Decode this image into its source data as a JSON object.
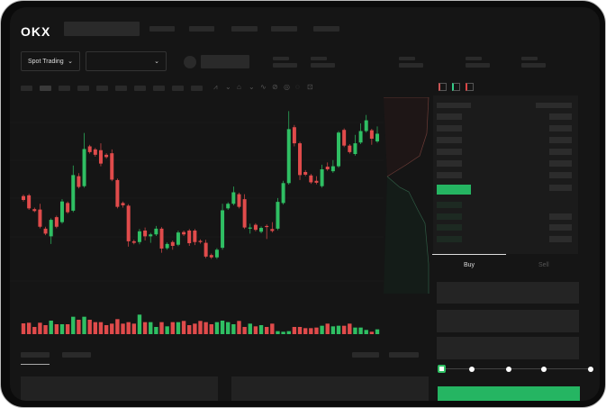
{
  "header": {
    "logo": "OKX"
  },
  "toolbar": {
    "market_selector": "Spot Trading",
    "pair_selector": "",
    "chevron_icon": "chevron-down-icon"
  },
  "orderbook": {
    "view_icons": [
      "orderbook-both-icon",
      "orderbook-buy-icon",
      "orderbook-sell-icon"
    ]
  },
  "trade_form": {
    "tabs": [
      {
        "label": "Buy",
        "active": true
      },
      {
        "label": "Sell",
        "active": false
      }
    ],
    "leverage_slider_value": 0,
    "slider_steps": 5
  },
  "colors": {
    "up": "#2fbf63",
    "down": "#e04b4b",
    "background": "#151515",
    "accent": "#25b562"
  },
  "chart_data": {
    "type": "candlestick",
    "candles": [
      [
        55.0,
        54.0,
        55.4,
        53.6
      ],
      [
        55.2,
        51.8,
        55.6,
        51.4
      ],
      [
        51.6,
        51.1,
        52.0,
        50.8
      ],
      [
        51.5,
        47.0,
        53.0,
        46.6
      ],
      [
        46.5,
        45.2,
        47.0,
        44.8
      ],
      [
        44.5,
        48.8,
        49.2,
        42.5
      ],
      [
        49.5,
        47.0,
        49.9,
        46.6
      ],
      [
        48.2,
        53.6,
        54.2,
        47.8
      ],
      [
        53.2,
        50.8,
        53.6,
        50.4
      ],
      [
        51.2,
        60.5,
        63.0,
        50.8
      ],
      [
        60.2,
        57.4,
        61.0,
        57.0
      ],
      [
        57.6,
        67.3,
        71.5,
        57.2
      ],
      [
        68.0,
        66.5,
        68.4,
        66.1
      ],
      [
        67.2,
        65.8,
        67.6,
        65.3
      ],
      [
        67.0,
        63.5,
        68.8,
        62.8
      ],
      [
        65.8,
        65.2,
        66.2,
        64.8
      ],
      [
        66.2,
        59.3,
        67.2,
        58.9
      ],
      [
        59.2,
        52.2,
        59.6,
        51.8
      ],
      [
        53.2,
        52.6,
        53.6,
        52.0
      ],
      [
        52.5,
        43.2,
        52.9,
        41.8
      ],
      [
        43.2,
        42.8,
        43.6,
        42.4
      ],
      [
        43.0,
        45.8,
        46.4,
        42.4
      ],
      [
        46.0,
        44.5,
        46.8,
        43.4
      ],
      [
        44.5,
        45.0,
        45.4,
        42.8
      ],
      [
        45.0,
        46.5,
        47.2,
        44.6
      ],
      [
        46.5,
        41.3,
        46.9,
        40.2
      ],
      [
        41.4,
        42.5,
        42.9,
        41.0
      ],
      [
        43.0,
        42.0,
        43.4,
        41.0
      ],
      [
        42.3,
        45.5,
        46.0,
        41.9
      ],
      [
        45.6,
        45.0,
        46.0,
        44.6
      ],
      [
        46.0,
        42.7,
        46.4,
        42.0
      ],
      [
        46.0,
        43.0,
        46.4,
        42.2
      ],
      [
        43.3,
        43.0,
        43.7,
        42.6
      ],
      [
        42.8,
        39.2,
        43.6,
        38.8
      ],
      [
        39.6,
        39.0,
        40.0,
        38.6
      ],
      [
        39.0,
        41.0,
        41.4,
        38.6
      ],
      [
        41.5,
        51.3,
        53.0,
        41.0
      ],
      [
        51.8,
        53.0,
        53.4,
        51.4
      ],
      [
        53.0,
        56.0,
        57.5,
        52.6
      ],
      [
        55.5,
        52.2,
        55.9,
        51.8
      ],
      [
        54.2,
        46.8,
        55.5,
        46.4
      ],
      [
        46.5,
        46.8,
        47.8,
        45.2
      ],
      [
        47.5,
        46.2,
        47.9,
        45.8
      ],
      [
        45.7,
        46.7,
        47.1,
        45.3
      ],
      [
        47.2,
        47.0,
        47.6,
        43.8
      ],
      [
        46.4,
        45.9,
        48.2,
        45.5
      ],
      [
        46.5,
        53.5,
        54.5,
        46.1
      ],
      [
        53.2,
        58.4,
        59.0,
        52.8
      ],
      [
        58.4,
        72.5,
        77.2,
        58.0
      ],
      [
        73.0,
        68.8,
        73.6,
        68.0
      ],
      [
        68.8,
        60.5,
        69.2,
        59.2
      ],
      [
        61.3,
        60.6,
        61.8,
        60.2
      ],
      [
        60.4,
        58.6,
        60.8,
        58.2
      ],
      [
        59.0,
        58.5,
        60.2,
        58.1
      ],
      [
        57.6,
        62.0,
        63.2,
        57.2
      ],
      [
        62.7,
        62.0,
        63.8,
        61.6
      ],
      [
        61.5,
        62.8,
        64.4,
        61.1
      ],
      [
        62.8,
        71.6,
        72.0,
        62.4
      ],
      [
        72.3,
        68.2,
        72.7,
        67.8
      ],
      [
        68.2,
        66.5,
        68.6,
        66.1
      ],
      [
        66.0,
        68.8,
        71.0,
        65.6
      ],
      [
        69.0,
        72.0,
        74.0,
        68.6
      ],
      [
        72.0,
        74.8,
        76.2,
        71.6
      ],
      [
        72.2,
        70.0,
        72.6,
        68.4
      ],
      [
        69.3,
        71.3,
        73.2,
        68.9
      ]
    ],
    "volume": [
      36,
      38,
      24,
      38,
      30,
      45,
      33,
      33,
      33,
      58,
      48,
      58,
      48,
      40,
      40,
      30,
      35,
      50,
      35,
      40,
      35,
      65,
      40,
      40,
      24,
      40,
      26,
      40,
      40,
      44,
      30,
      35,
      44,
      40,
      33,
      40,
      45,
      40,
      33,
      44,
      24,
      35,
      26,
      30,
      24,
      35,
      10,
      8,
      10,
      24,
      24,
      20,
      20,
      22,
      28,
      35,
      26,
      28,
      28,
      35,
      22,
      22,
      14,
      8,
      16
    ],
    "grid": true
  }
}
